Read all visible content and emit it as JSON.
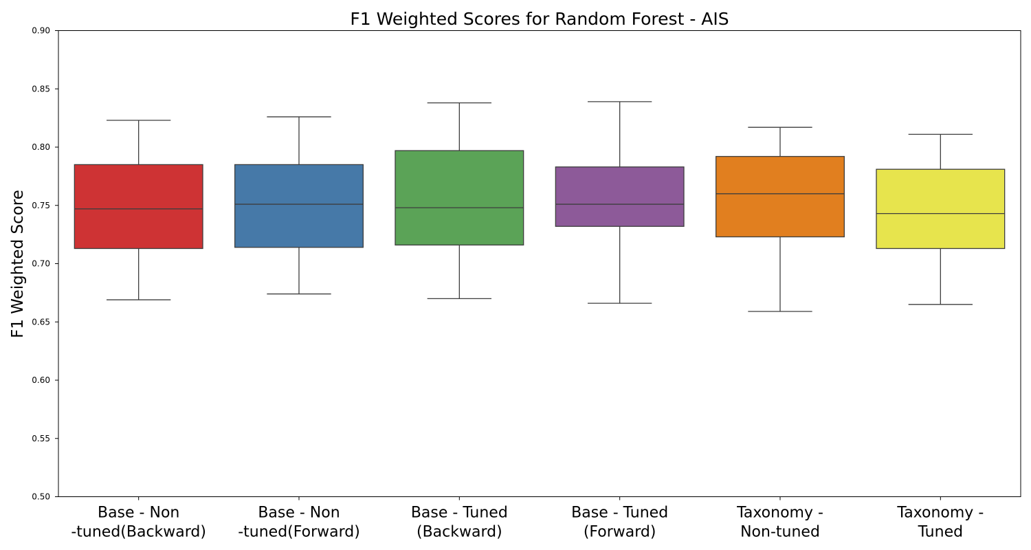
{
  "chart_data": {
    "type": "box",
    "title": "F1 Weighted Scores for Random Forest - AIS",
    "xlabel": "",
    "ylabel": "F1 Weighted Score",
    "ylim": [
      0.5,
      0.9
    ],
    "yticks": [
      "0.50",
      "0.55",
      "0.60",
      "0.65",
      "0.70",
      "0.75",
      "0.80",
      "0.85",
      "0.90"
    ],
    "grid": false,
    "categories": [
      [
        "Base - Non",
        "-tuned(Backward)"
      ],
      [
        "Base - Non",
        "-tuned(Forward)"
      ],
      [
        "Base - Tuned",
        "(Backward)"
      ],
      [
        "Base - Tuned",
        "(Forward)"
      ],
      [
        "Taxonomy -",
        "Non-tuned"
      ],
      [
        "Taxonomy -",
        "Tuned"
      ]
    ],
    "boxes": [
      {
        "whisker_low": 0.669,
        "q1": 0.713,
        "median": 0.747,
        "q3": 0.785,
        "whisker_high": 0.823,
        "color": "#ce3334"
      },
      {
        "whisker_low": 0.674,
        "q1": 0.714,
        "median": 0.751,
        "q3": 0.785,
        "whisker_high": 0.826,
        "color": "#4679a8"
      },
      {
        "whisker_low": 0.67,
        "q1": 0.716,
        "median": 0.748,
        "q3": 0.797,
        "whisker_high": 0.838,
        "color": "#5ba357"
      },
      {
        "whisker_low": 0.666,
        "q1": 0.732,
        "median": 0.751,
        "q3": 0.783,
        "whisker_high": 0.839,
        "color": "#8d5a99"
      },
      {
        "whisker_low": 0.659,
        "q1": 0.723,
        "median": 0.76,
        "q3": 0.792,
        "whisker_high": 0.817,
        "color": "#e17f1f"
      },
      {
        "whisker_low": 0.665,
        "q1": 0.713,
        "median": 0.743,
        "q3": 0.781,
        "whisker_high": 0.811,
        "color": "#e7e44d"
      }
    ],
    "line_color": "#3d3d3d"
  }
}
